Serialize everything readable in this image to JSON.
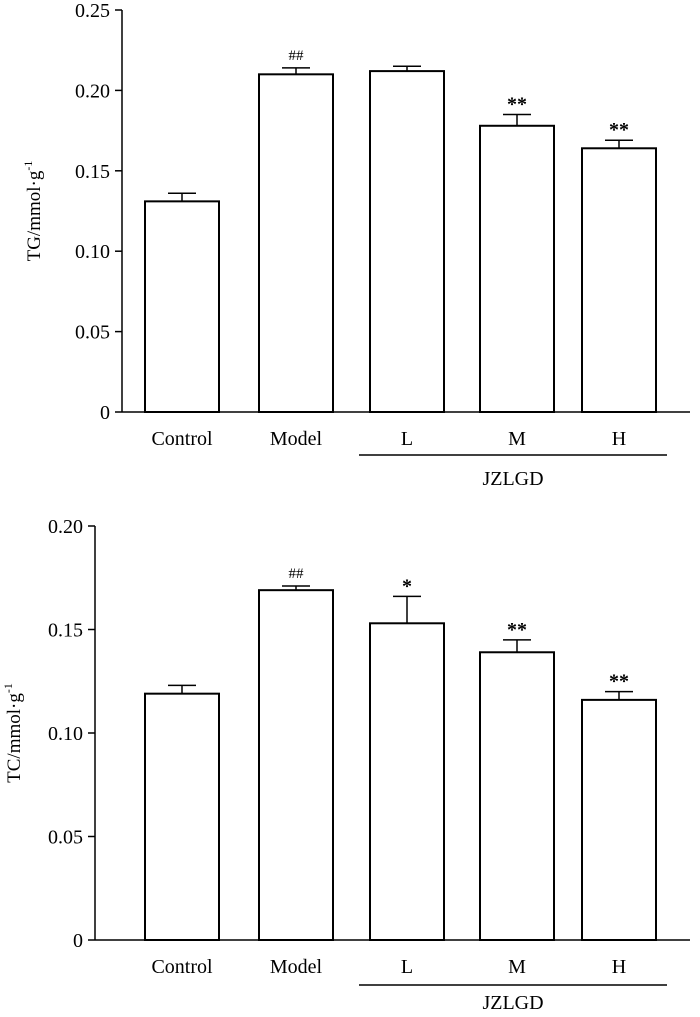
{
  "chart_data": [
    {
      "type": "bar",
      "title": "",
      "categories": [
        "Control",
        "Model",
        "L",
        "M",
        "H"
      ],
      "values": [
        0.131,
        0.21,
        0.212,
        0.178,
        0.164
      ],
      "errors": [
        0.005,
        0.004,
        0.003,
        0.007,
        0.005
      ],
      "significance": [
        "",
        "##",
        "",
        "**",
        "**"
      ],
      "group_label": "JZLGD",
      "grouped_categories": [
        "L",
        "M",
        "H"
      ],
      "xlabel": "",
      "ylabel": "TG/mmol·g",
      "ylabel_sup": "-1",
      "ylim": [
        0,
        0.25
      ],
      "yticks": [
        0,
        0.05,
        0.1,
        0.15,
        0.2,
        0.25
      ],
      "ytick_labels": [
        "0",
        "0.05",
        "0.10",
        "0.15",
        "0.20",
        "0.25"
      ],
      "grid": false
    },
    {
      "type": "bar",
      "title": "",
      "categories": [
        "Control",
        "Model",
        "L",
        "M",
        "H"
      ],
      "values": [
        0.119,
        0.169,
        0.153,
        0.139,
        0.116
      ],
      "errors": [
        0.004,
        0.002,
        0.013,
        0.006,
        0.004
      ],
      "significance": [
        "",
        "##",
        "*",
        "**",
        "**"
      ],
      "group_label": "JZLGD",
      "grouped_categories": [
        "L",
        "M",
        "H"
      ],
      "xlabel": "",
      "ylabel": "TC/mmol·g",
      "ylabel_sup": "-1",
      "ylim": [
        0,
        0.2
      ],
      "yticks": [
        0,
        0.05,
        0.1,
        0.15,
        0.2
      ],
      "ytick_labels": [
        "0",
        "0.05",
        "0.10",
        "0.15",
        "0.20"
      ],
      "grid": false
    }
  ]
}
